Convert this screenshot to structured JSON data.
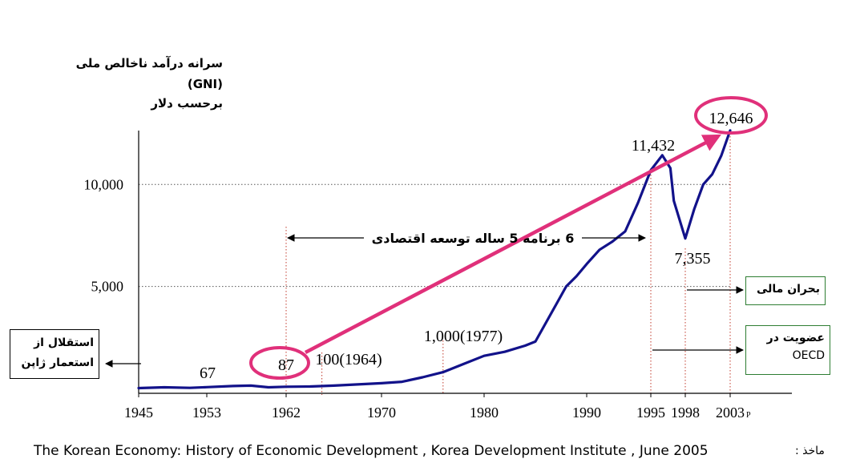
{
  "chart_data": {
    "type": "line",
    "title": "",
    "ylabel_lines": [
      "سرانه درآمد ناخالص ملی",
      "(GNI)",
      "برحسب دلار"
    ],
    "xlabel": "",
    "x_tick_labels": [
      "1945",
      "1953",
      "1962",
      "1970",
      "1980",
      "1990",
      "1995",
      "1998",
      "2003"
    ],
    "x_tick_suffix": "P",
    "y_tick_labels": [
      "10,000",
      "5,000"
    ],
    "ylim": [
      0,
      12500
    ],
    "xlim": [
      1945,
      2005
    ],
    "grid": "dotted horizontal at 5,000 and 10,000",
    "series": [
      {
        "color": "#12128a",
        "points": [
          [
            1945,
            20
          ],
          [
            1948,
            60
          ],
          [
            1951,
            30
          ],
          [
            1953,
            67
          ],
          [
            1956,
            120
          ],
          [
            1958,
            140
          ],
          [
            1960,
            60
          ],
          [
            1962,
            87
          ],
          [
            1964,
            100
          ],
          [
            1966,
            140
          ],
          [
            1968,
            200
          ],
          [
            1970,
            260
          ],
          [
            1972,
            330
          ],
          [
            1974,
            550
          ],
          [
            1976,
            800
          ],
          [
            1977,
            1000
          ],
          [
            1978,
            1200
          ],
          [
            1980,
            1600
          ],
          [
            1982,
            1800
          ],
          [
            1984,
            2100
          ],
          [
            1985,
            2300
          ],
          [
            1986,
            3200
          ],
          [
            1987,
            4100
          ],
          [
            1988,
            5000
          ],
          [
            1989,
            5500
          ],
          [
            1990,
            6100
          ],
          [
            1991,
            6800
          ],
          [
            1992,
            7200
          ],
          [
            1993,
            7700
          ],
          [
            1994,
            9100
          ],
          [
            1995,
            10700
          ],
          [
            1996,
            11432
          ],
          [
            1996.7,
            10800
          ],
          [
            1997,
            9200
          ],
          [
            1998,
            7355
          ],
          [
            1999,
            8800
          ],
          [
            2000,
            10000
          ],
          [
            2001,
            10500
          ],
          [
            2002,
            11400
          ],
          [
            2003,
            12646
          ]
        ]
      }
    ],
    "annotations": [
      {
        "text": "67",
        "x": 1953,
        "y": 67
      },
      {
        "text": "87",
        "x": 1962,
        "y": 87
      },
      {
        "text": "100(1964)",
        "x": 1964,
        "y": 100
      },
      {
        "text": "1,000(1977)",
        "x": 1977,
        "y": 1000
      },
      {
        "text": "11,432",
        "x": 1996,
        "y": 11432
      },
      {
        "text": "7,355",
        "x": 1998,
        "y": 7355
      },
      {
        "text": "12,646",
        "x": 2003,
        "y": 12646
      }
    ],
    "highlighted_values": [
      "87",
      "12,646"
    ],
    "trend_arrow": {
      "from": [
        1962,
        87
      ],
      "to": [
        2003,
        12646
      ],
      "color": "#e0307a"
    },
    "period_arrow": {
      "label": "6 برنامه 5 ساله توسعه اقتصادی",
      "from_year": 1962,
      "to_year": 1996
    }
  },
  "boxes": {
    "independence": "استقلال از استعمار ژاپن",
    "financial_crisis": "بحران مالی",
    "oecd_line1": "عضویت در",
    "oecd_line2": "OECD"
  },
  "source": {
    "label": "ماخذ :",
    "text": "The Korean Economy: History of Economic Development , Korea Development Institute , June 2005"
  },
  "colors": {
    "series": "#12128a",
    "highlight": "#e0307a",
    "guide": "#c0392b",
    "box_border_green": "#2e7d32"
  }
}
